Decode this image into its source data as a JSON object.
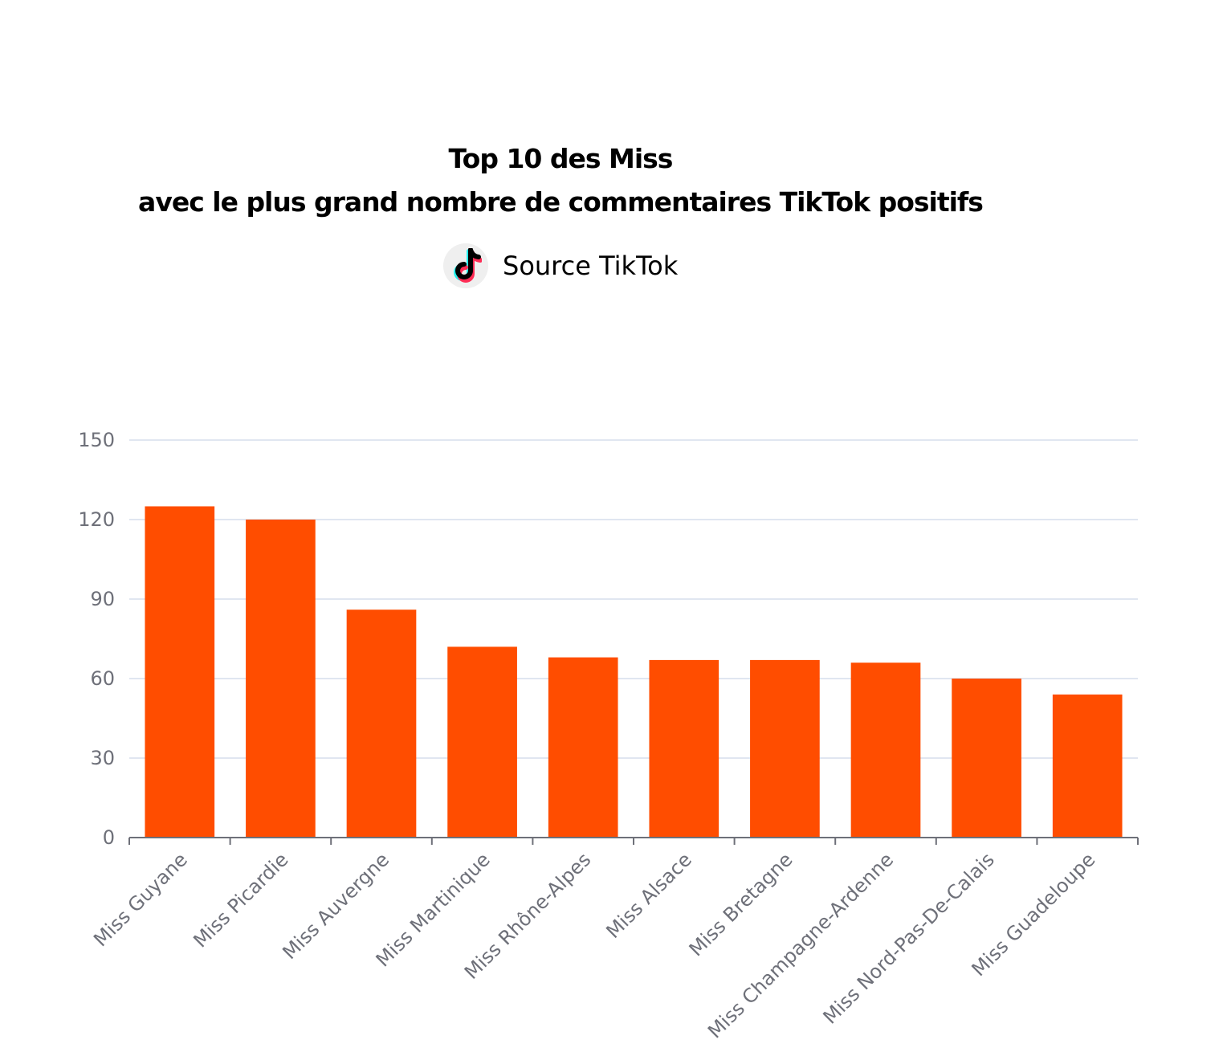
{
  "title": {
    "line1": "Top 10 des Miss",
    "line2": "avec le plus grand nombre de commentaires TikTok positifs"
  },
  "source": {
    "label": "Source TikTok",
    "icon": "tiktok-logo-icon"
  },
  "colors": {
    "bar": "#ff4d00",
    "grid": "#e0e6f1",
    "axis": "#6e7079",
    "text": "#000000"
  },
  "chart_data": {
    "type": "bar",
    "categories": [
      "Miss Guyane",
      "Miss Picardie",
      "Miss Auvergne",
      "Miss Martinique",
      "Miss Rhône-Alpes",
      "Miss Alsace",
      "Miss Bretagne",
      "Miss Champagne-Ardenne",
      "Miss Nord-Pas-De-Calais",
      "Miss Guadeloupe"
    ],
    "values": [
      125,
      120,
      86,
      72,
      68,
      67,
      67,
      66,
      60,
      54
    ],
    "yticks": [
      0,
      30,
      60,
      90,
      120,
      150
    ],
    "ylim": [
      0,
      150
    ],
    "grid": true,
    "legend": "none"
  }
}
